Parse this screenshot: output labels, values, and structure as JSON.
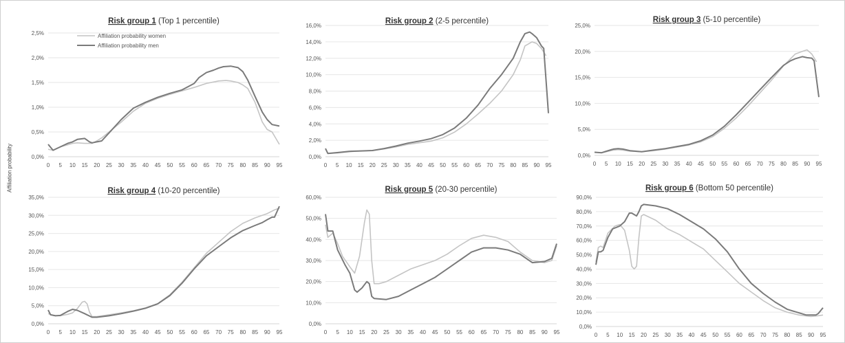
{
  "y_axis_label": "Affiliation probability",
  "legend": {
    "women": "Affiliation probability women",
    "men": "Affiliation probability men"
  },
  "colors": {
    "women": "#c4c4c4",
    "men": "#7a7a7a",
    "grid": "#e6e6e6",
    "axis": "#d4d4d4"
  },
  "chart_data": [
    {
      "type": "line",
      "title_bold": "Risk group 1",
      "title_rest": "(Top 1 percentile)",
      "x_ticks": [
        "0",
        "5",
        "10",
        "15",
        "20",
        "25",
        "30",
        "35",
        "40",
        "45",
        "50",
        "55",
        "60",
        "65",
        "70",
        "75",
        "80",
        "85",
        "90",
        "95"
      ],
      "y_ticks": [
        "0,0%",
        "0,5%",
        "1,0%",
        "1,5%",
        "2,0%",
        "2,5%"
      ],
      "ylim": [
        0,
        2.5
      ],
      "xlim": [
        0,
        95
      ],
      "show_legend": true,
      "series": [
        {
          "name": "Affiliation probability women",
          "key": "women",
          "x": [
            0,
            2,
            5,
            8,
            10,
            12,
            15,
            18,
            20,
            22,
            25,
            30,
            35,
            40,
            45,
            50,
            55,
            60,
            65,
            70,
            73,
            75,
            78,
            80,
            82,
            85,
            88,
            90,
            92,
            95
          ],
          "y": [
            0.15,
            0.13,
            0.2,
            0.24,
            0.27,
            0.28,
            0.27,
            0.27,
            0.32,
            0.38,
            0.5,
            0.7,
            0.92,
            1.08,
            1.18,
            1.26,
            1.33,
            1.4,
            1.48,
            1.53,
            1.54,
            1.53,
            1.5,
            1.45,
            1.38,
            1.1,
            0.7,
            0.55,
            0.5,
            0.25
          ]
        },
        {
          "name": "Affiliation probability men",
          "key": "men",
          "x": [
            0,
            2,
            5,
            8,
            10,
            12,
            15,
            17,
            18,
            20,
            22,
            25,
            30,
            35,
            40,
            45,
            50,
            55,
            60,
            62,
            65,
            68,
            70,
            72,
            75,
            78,
            80,
            82,
            85,
            88,
            90,
            92,
            95
          ],
          "y": [
            0.25,
            0.13,
            0.2,
            0.27,
            0.3,
            0.35,
            0.37,
            0.3,
            0.28,
            0.3,
            0.32,
            0.48,
            0.75,
            0.98,
            1.1,
            1.2,
            1.28,
            1.35,
            1.48,
            1.6,
            1.7,
            1.75,
            1.79,
            1.82,
            1.83,
            1.8,
            1.72,
            1.55,
            1.22,
            0.9,
            0.75,
            0.65,
            0.62
          ]
        }
      ]
    },
    {
      "type": "line",
      "title_bold": "Risk group 2",
      "title_rest": "(2-5 percentile)",
      "x_ticks": [
        "0",
        "5",
        "10",
        "15",
        "20",
        "25",
        "30",
        "35",
        "40",
        "45",
        "50",
        "55",
        "60",
        "65",
        "70",
        "75",
        "80",
        "85",
        "90",
        "95"
      ],
      "y_ticks": [
        "0,0%",
        "2,0%",
        "4,0%",
        "6,0%",
        "8,0%",
        "10,0%",
        "12,0%",
        "14,0%",
        "16,0%"
      ],
      "ylim": [
        0,
        16
      ],
      "xlim": [
        0,
        95
      ],
      "show_legend": false,
      "series": [
        {
          "name": "Affiliation probability women",
          "key": "women",
          "x": [
            0,
            1,
            5,
            10,
            15,
            20,
            25,
            30,
            35,
            40,
            45,
            50,
            55,
            60,
            65,
            70,
            75,
            80,
            83,
            85,
            88,
            90,
            92,
            94
          ],
          "y": [
            1.0,
            0.4,
            0.45,
            0.6,
            0.7,
            0.75,
            0.95,
            1.2,
            1.5,
            1.7,
            1.9,
            2.3,
            3.0,
            4.0,
            5.2,
            6.5,
            8.0,
            10.0,
            11.8,
            13.5,
            14.0,
            13.8,
            13.2,
            12.3
          ]
        },
        {
          "name": "Affiliation probability men",
          "key": "men",
          "x": [
            0,
            1,
            5,
            10,
            15,
            20,
            25,
            30,
            35,
            40,
            45,
            50,
            55,
            60,
            65,
            70,
            75,
            80,
            83,
            85,
            87,
            88,
            90,
            92,
            93,
            95
          ],
          "y": [
            1.0,
            0.4,
            0.5,
            0.65,
            0.7,
            0.75,
            1.0,
            1.3,
            1.65,
            1.9,
            2.2,
            2.7,
            3.5,
            4.7,
            6.3,
            8.3,
            10.0,
            12.0,
            14.0,
            15.0,
            15.2,
            15.0,
            14.5,
            13.5,
            13.2,
            5.3
          ]
        }
      ]
    },
    {
      "type": "line",
      "title_bold": "Risk group 3",
      "title_rest": "(5-10 percentile)",
      "x_ticks": [
        "0",
        "5",
        "10",
        "15",
        "20",
        "25",
        "30",
        "35",
        "40",
        "45",
        "50",
        "55",
        "60",
        "65",
        "70",
        "75",
        "80",
        "85",
        "90",
        "95"
      ],
      "y_ticks": [
        "0,0%",
        "5,0%",
        "10,0%",
        "15,0%",
        "20,0%",
        "25,0%"
      ],
      "ylim": [
        0,
        25
      ],
      "xlim": [
        0,
        95
      ],
      "show_legend": false,
      "series": [
        {
          "name": "Affiliation probability women",
          "key": "women",
          "x": [
            0,
            3,
            5,
            8,
            10,
            12,
            15,
            20,
            25,
            30,
            35,
            40,
            45,
            50,
            55,
            60,
            65,
            70,
            75,
            80,
            85,
            88,
            90,
            92,
            94
          ],
          "y": [
            0.6,
            0.5,
            0.7,
            1.0,
            1.1,
            1.0,
            0.8,
            0.7,
            0.9,
            1.2,
            1.6,
            2.0,
            2.6,
            3.6,
            5.2,
            7.2,
            9.5,
            12.0,
            14.5,
            17.2,
            19.5,
            20.0,
            20.3,
            19.5,
            18.0
          ]
        },
        {
          "name": "Affiliation probability men",
          "key": "men",
          "x": [
            0,
            3,
            5,
            8,
            10,
            12,
            15,
            20,
            25,
            30,
            35,
            40,
            45,
            50,
            55,
            60,
            65,
            70,
            75,
            80,
            83,
            85,
            88,
            90,
            92,
            93,
            95
          ],
          "y": [
            0.6,
            0.5,
            0.8,
            1.2,
            1.3,
            1.2,
            0.9,
            0.7,
            1.0,
            1.3,
            1.7,
            2.1,
            2.8,
            3.9,
            5.6,
            7.8,
            10.2,
            12.6,
            15.0,
            17.3,
            18.2,
            18.6,
            19.0,
            18.8,
            18.7,
            18.2,
            11.2
          ]
        }
      ]
    },
    {
      "type": "line",
      "title_bold": "Risk group 4",
      "title_rest": "(10-20 percentile)",
      "x_ticks": [
        "0",
        "5",
        "10",
        "15",
        "20",
        "25",
        "30",
        "35",
        "40",
        "45",
        "50",
        "55",
        "60",
        "65",
        "70",
        "75",
        "80",
        "85",
        "90",
        "95"
      ],
      "y_ticks": [
        "0,0%",
        "5,0%",
        "10,0%",
        "15,0%",
        "20,0%",
        "25,0%",
        "30,0%",
        "35,0%"
      ],
      "ylim": [
        0,
        35
      ],
      "xlim": [
        0,
        95
      ],
      "show_legend": false,
      "series": [
        {
          "name": "Affiliation probability women",
          "key": "women",
          "x": [
            0,
            2,
            5,
            8,
            10,
            12,
            14,
            15,
            16,
            17,
            18,
            20,
            25,
            30,
            35,
            40,
            45,
            50,
            55,
            60,
            65,
            70,
            75,
            80,
            85,
            90,
            93,
            95
          ],
          "y": [
            2.8,
            2.3,
            2.2,
            2.6,
            3.0,
            4.2,
            6.0,
            6.2,
            5.5,
            3.2,
            2.0,
            2.0,
            2.5,
            3.0,
            3.6,
            4.4,
            5.6,
            8.0,
            11.5,
            15.5,
            19.5,
            22.5,
            25.5,
            27.8,
            29.3,
            30.5,
            31.5,
            32.0
          ]
        },
        {
          "name": "Affiliation probability men",
          "key": "men",
          "x": [
            0,
            1,
            3,
            5,
            8,
            10,
            12,
            15,
            18,
            20,
            25,
            30,
            35,
            40,
            45,
            50,
            55,
            60,
            65,
            70,
            75,
            80,
            85,
            88,
            90,
            92,
            93,
            94,
            95
          ],
          "y": [
            3.8,
            2.5,
            2.2,
            2.3,
            3.4,
            4.0,
            3.7,
            2.8,
            1.8,
            1.8,
            2.2,
            2.8,
            3.5,
            4.3,
            5.5,
            7.8,
            11.2,
            15.2,
            18.8,
            21.3,
            23.8,
            25.8,
            27.2,
            28.0,
            28.8,
            29.5,
            29.5,
            31.0,
            32.5
          ]
        }
      ]
    },
    {
      "type": "line",
      "title_bold": "Risk group 5",
      "title_rest": "(20-30 percentile)",
      "x_ticks": [
        "0",
        "5",
        "10",
        "15",
        "20",
        "25",
        "30",
        "35",
        "40",
        "45",
        "50",
        "55",
        "60",
        "65",
        "70",
        "75",
        "80",
        "85",
        "90",
        "95"
      ],
      "y_ticks": [
        "0,0%",
        "10,0%",
        "20,0%",
        "30,0%",
        "40,0%",
        "50,0%",
        "60,0%"
      ],
      "ylim": [
        0,
        60
      ],
      "xlim": [
        0,
        95
      ],
      "show_legend": false,
      "series": [
        {
          "name": "Affiliation probability women",
          "key": "women",
          "x": [
            0,
            1,
            3,
            5,
            7,
            10,
            12,
            14,
            16,
            17,
            18,
            19,
            20,
            22,
            25,
            30,
            35,
            40,
            45,
            50,
            55,
            60,
            65,
            70,
            75,
            80,
            85,
            90,
            93,
            95
          ],
          "y": [
            47,
            41,
            43,
            38,
            32,
            27,
            24,
            32,
            48,
            54,
            52,
            30,
            19,
            19,
            20,
            23,
            26,
            28,
            30,
            33,
            37,
            40.5,
            42,
            41,
            39,
            34,
            30,
            29,
            30,
            37
          ]
        },
        {
          "name": "Affiliation probability men",
          "key": "men",
          "x": [
            0,
            1,
            3,
            5,
            8,
            10,
            12,
            13,
            15,
            17,
            18,
            19,
            20,
            25,
            30,
            35,
            40,
            45,
            50,
            55,
            60,
            65,
            70,
            75,
            80,
            85,
            90,
            93,
            95
          ],
          "y": [
            52,
            44,
            44,
            35,
            28,
            24,
            16,
            15,
            17,
            20,
            19,
            13,
            12,
            11.5,
            13,
            16,
            19,
            22,
            26,
            30,
            34,
            36,
            36,
            35,
            33,
            29,
            29.5,
            31,
            38
          ]
        }
      ]
    },
    {
      "type": "line",
      "title_bold": "Risk group 6",
      "title_rest": "(Bottom 50 percentile)",
      "x_ticks": [
        "0",
        "5",
        "10",
        "15",
        "20",
        "25",
        "30",
        "35",
        "40",
        "45",
        "50",
        "55",
        "60",
        "65",
        "70",
        "75",
        "80",
        "85",
        "90",
        "95"
      ],
      "y_ticks": [
        "0,0%",
        "10,0%",
        "20,0%",
        "30,0%",
        "40,0%",
        "50,0%",
        "60,0%",
        "70,0%",
        "80,0%",
        "90,0%"
      ],
      "ylim": [
        0,
        90
      ],
      "xlim": [
        0,
        95
      ],
      "show_legend": false,
      "series": [
        {
          "name": "Affiliation probability women",
          "key": "women",
          "x": [
            0,
            1,
            2,
            3,
            5,
            8,
            10,
            12,
            14,
            15,
            16,
            17,
            18,
            19,
            20,
            25,
            30,
            35,
            40,
            45,
            50,
            55,
            60,
            65,
            70,
            75,
            80,
            85,
            90,
            93,
            95
          ],
          "y": [
            45,
            55,
            56,
            55,
            65,
            70,
            71,
            67,
            53,
            42,
            40,
            42,
            62,
            77,
            78,
            74,
            68,
            64,
            59,
            54,
            46,
            38,
            30,
            24,
            18,
            13,
            10,
            8,
            7,
            7.5,
            8
          ]
        },
        {
          "name": "Affiliation probability men",
          "key": "men",
          "x": [
            0,
            1,
            2,
            3,
            5,
            7,
            10,
            12,
            14,
            15,
            16,
            17,
            18,
            19,
            20,
            25,
            30,
            35,
            40,
            45,
            50,
            55,
            60,
            65,
            70,
            75,
            80,
            85,
            88,
            90,
            92,
            93,
            95
          ],
          "y": [
            43,
            52,
            52,
            53,
            62,
            68,
            70,
            73,
            79,
            79,
            78,
            77,
            80,
            84,
            85,
            84,
            82,
            78,
            73,
            68,
            61,
            52,
            40,
            30,
            23,
            17,
            12,
            9.5,
            8,
            8,
            8,
            9,
            13
          ]
        }
      ]
    }
  ]
}
